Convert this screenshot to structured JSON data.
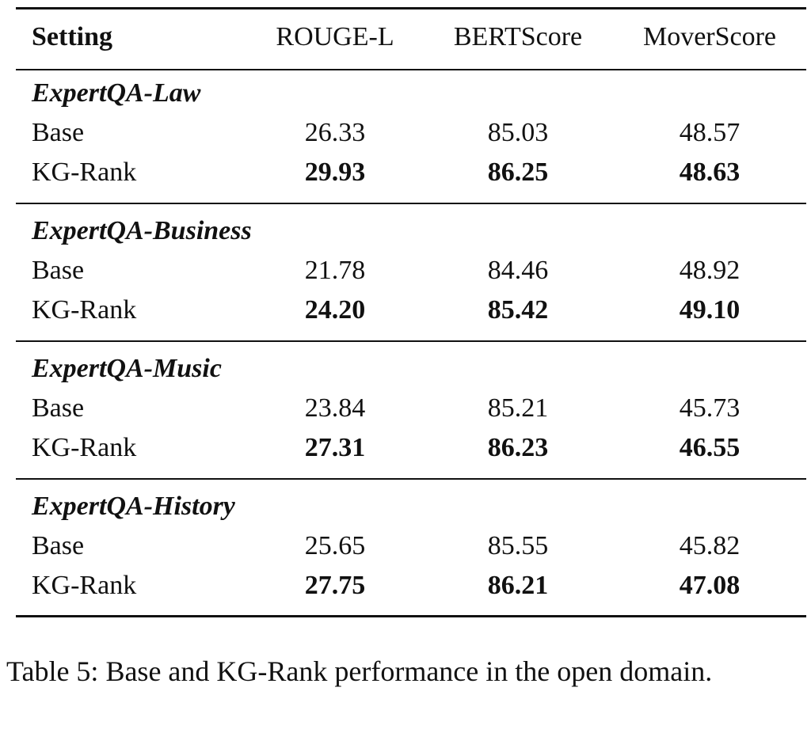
{
  "table": {
    "header": [
      "Setting",
      "ROUGE-L",
      "BERTScore",
      "MoverScore"
    ],
    "groups": [
      {
        "name": "ExpertQA-Law",
        "rows": [
          [
            "Base",
            "26.33",
            "85.03",
            "48.57"
          ],
          [
            "KG-Rank",
            "29.93",
            "86.25",
            "48.63"
          ]
        ]
      },
      {
        "name": "ExpertQA-Business",
        "rows": [
          [
            "Base",
            "21.78",
            "84.46",
            "48.92"
          ],
          [
            "KG-Rank",
            "24.20",
            "85.42",
            "49.10"
          ]
        ]
      },
      {
        "name": "ExpertQA-Music",
        "rows": [
          [
            "Base",
            "23.84",
            "85.21",
            "45.73"
          ],
          [
            "KG-Rank",
            "27.31",
            "86.23",
            "46.55"
          ]
        ]
      },
      {
        "name": "ExpertQA-History",
        "rows": [
          [
            "Base",
            "25.65",
            "85.55",
            "45.82"
          ],
          [
            "KG-Rank",
            "27.75",
            "86.21",
            "47.08"
          ]
        ]
      }
    ]
  },
  "caption": "Table 5: Base and KG-Rank performance in the open domain."
}
